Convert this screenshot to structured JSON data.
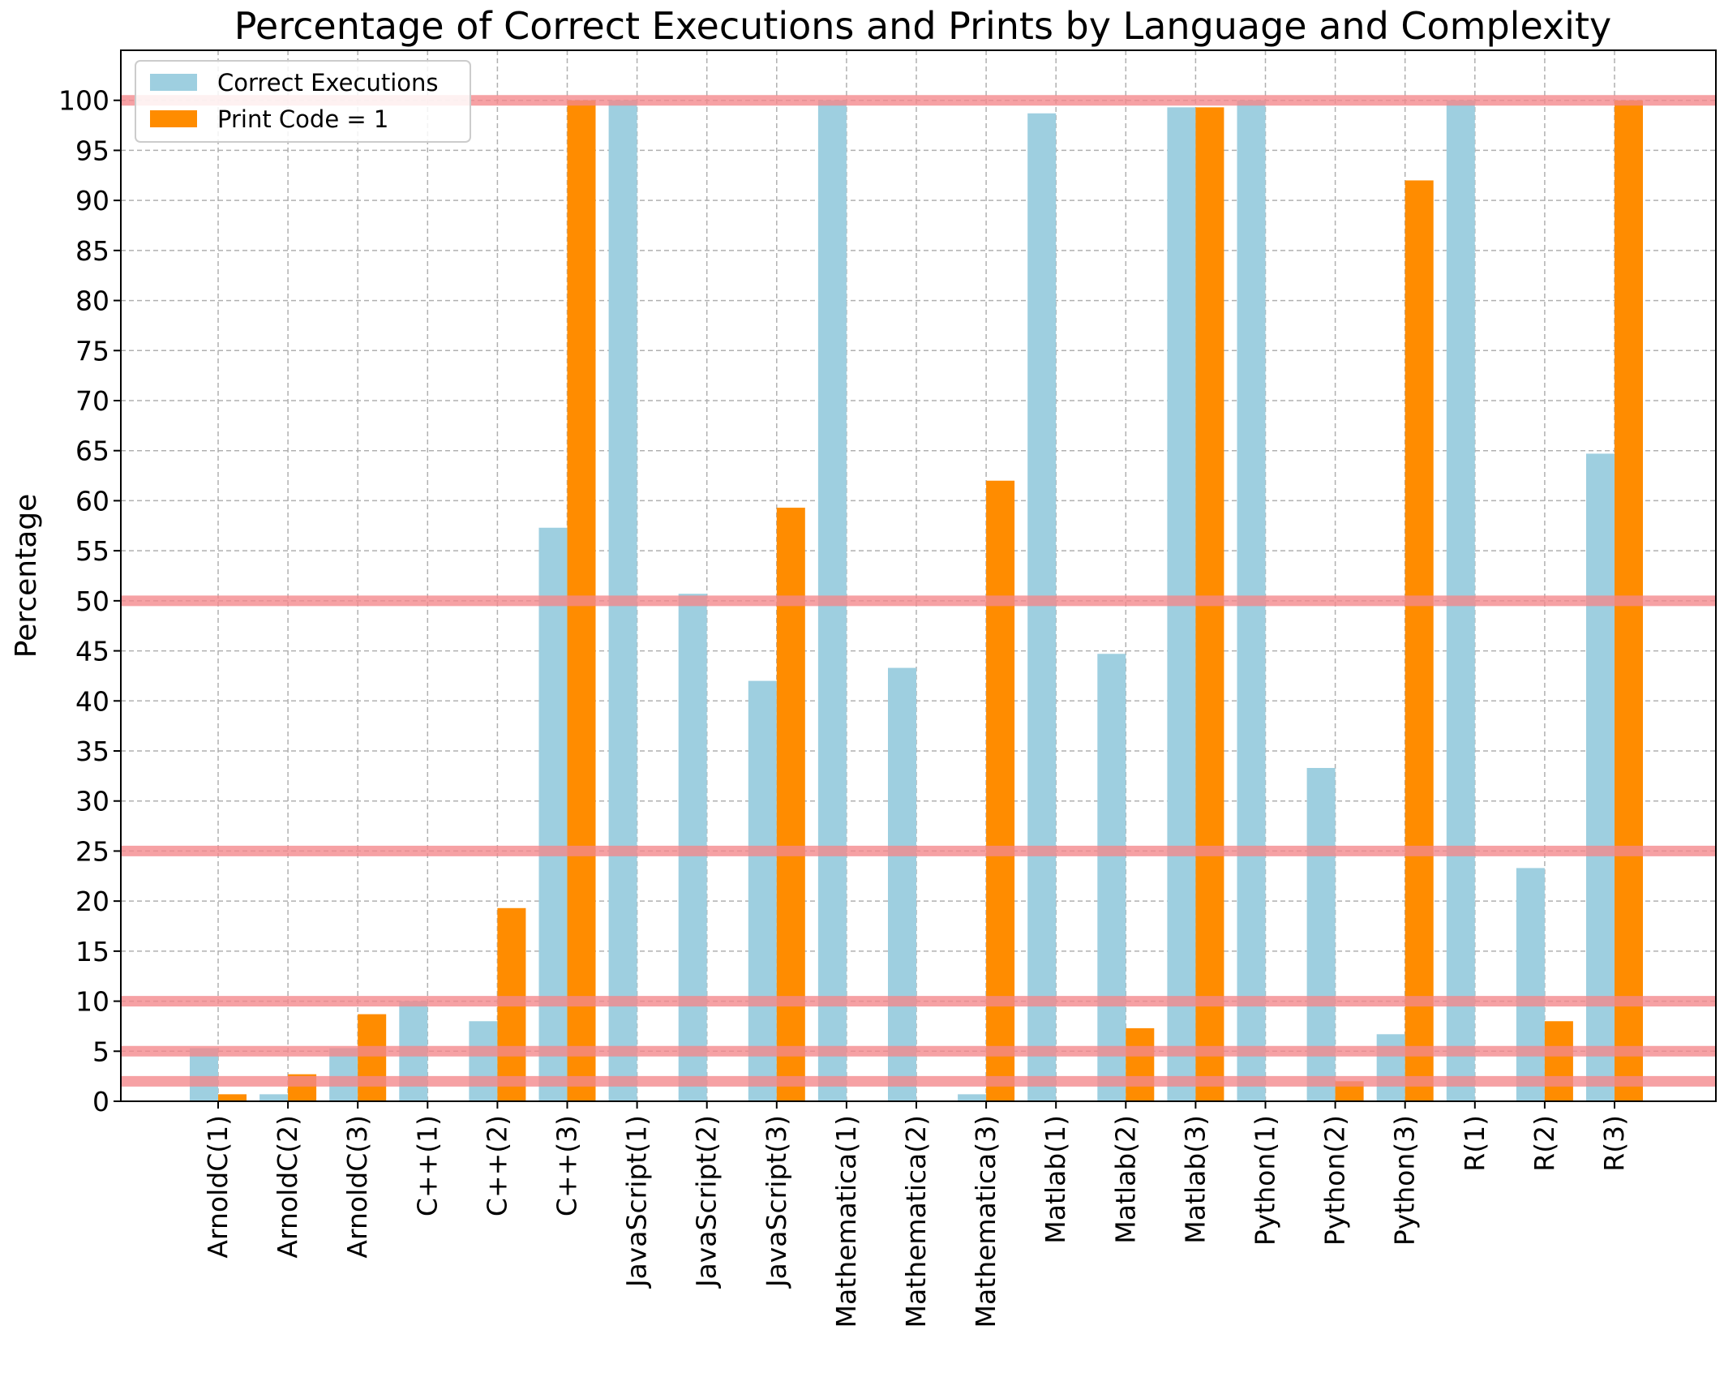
{
  "chart_data": {
    "type": "bar",
    "title": "Percentage of Correct Executions and Prints by Language and Complexity",
    "xlabel": "",
    "ylabel": "Percentage",
    "ylim": [
      0,
      105
    ],
    "yticks": [
      0,
      5,
      10,
      15,
      20,
      25,
      30,
      35,
      40,
      45,
      50,
      55,
      60,
      65,
      70,
      75,
      80,
      85,
      90,
      95,
      100
    ],
    "grid": true,
    "legend_position": "top-left",
    "categories": [
      "ArnoldC(1)",
      "ArnoldC(2)",
      "ArnoldC(3)",
      "C++(1)",
      "C++(2)",
      "C++(3)",
      "JavaScript(1)",
      "JavaScript(2)",
      "JavaScript(3)",
      "Mathematica(1)",
      "Mathematica(2)",
      "Mathematica(3)",
      "Matlab(1)",
      "Matlab(2)",
      "Matlab(3)",
      "Python(1)",
      "Python(2)",
      "Python(3)",
      "R(1)",
      "R(2)",
      "R(3)"
    ],
    "series": [
      {
        "name": "Correct Executions",
        "color": "#9ecfe0",
        "values": [
          5.3,
          0.7,
          5.3,
          10.0,
          8.0,
          57.3,
          100.0,
          50.7,
          42.0,
          100.0,
          43.3,
          0.7,
          98.7,
          44.7,
          99.3,
          100.0,
          33.3,
          6.7,
          100.0,
          23.3,
          64.7
        ]
      },
      {
        "name": "Print Code = 1",
        "color": "#ff8c00",
        "values": [
          0.7,
          2.7,
          8.7,
          0.0,
          19.3,
          100.0,
          0.0,
          0.0,
          59.3,
          0.0,
          0.0,
          62.0,
          0.0,
          7.3,
          99.3,
          0.0,
          2.0,
          92.0,
          0.0,
          8.0,
          100.0
        ]
      }
    ],
    "reference_lines": {
      "color": "#f4868b",
      "values": [
        2,
        5,
        10,
        25,
        50,
        100
      ]
    }
  }
}
